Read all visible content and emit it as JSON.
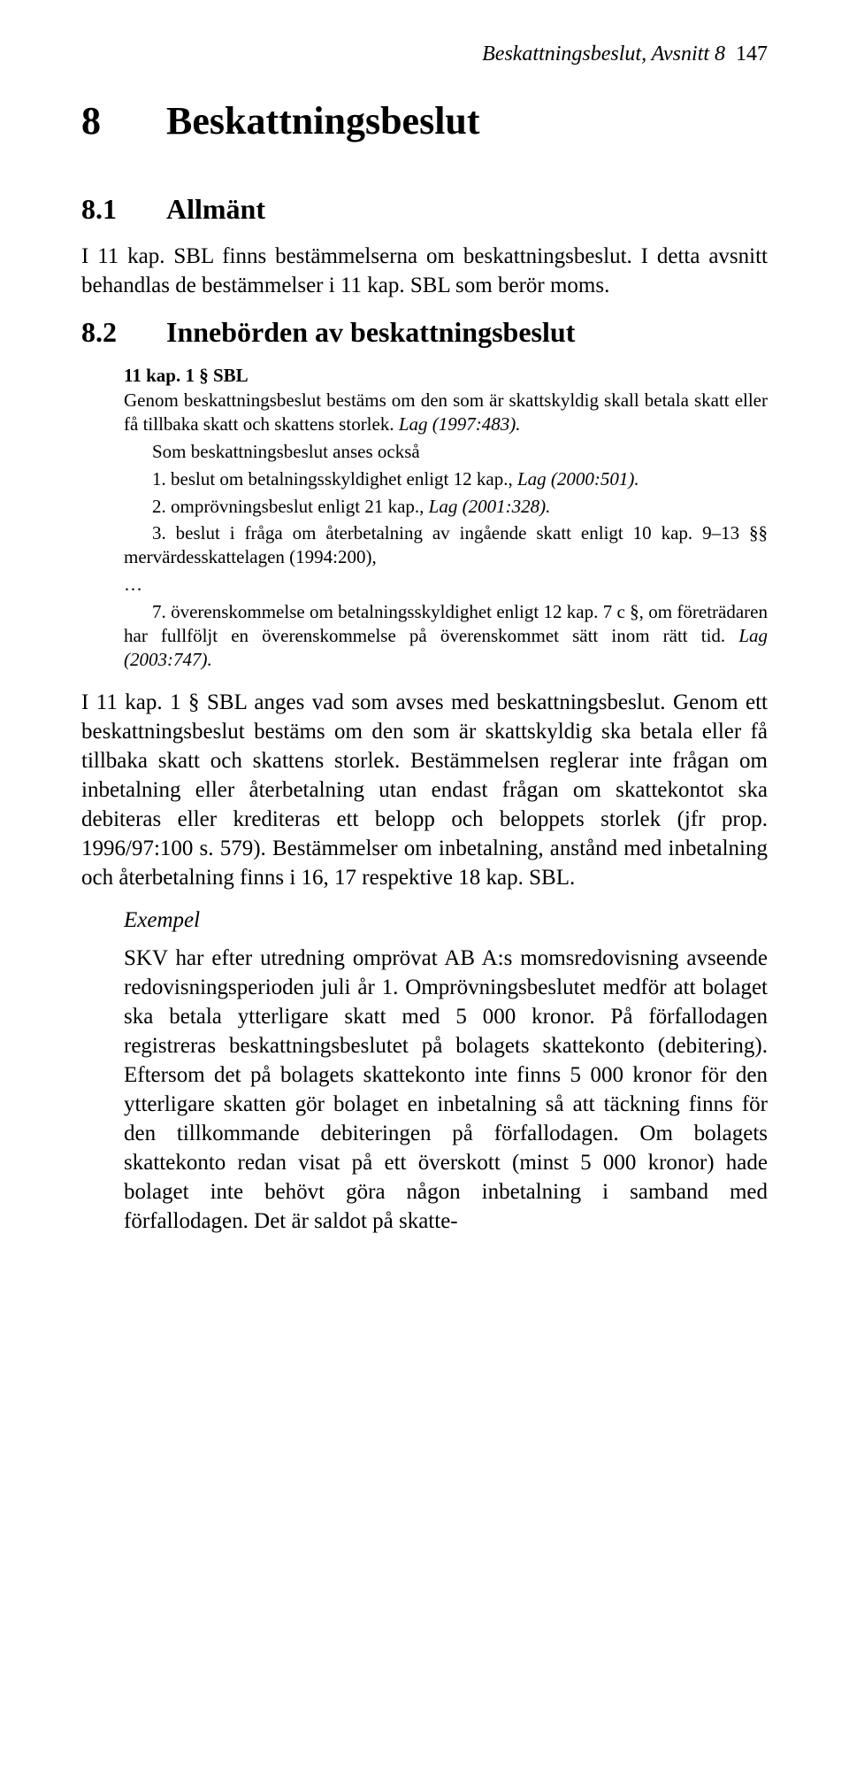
{
  "header": {
    "running_title": "Beskattningsbeslut, Avsnitt 8",
    "page_number": "147"
  },
  "chapter": {
    "number": "8",
    "title": "Beskattningsbeslut"
  },
  "section_81": {
    "number": "8.1",
    "title": "Allmänt",
    "body": "I 11 kap. SBL finns bestämmelserna om beskattningsbeslut. I detta avsnitt behandlas de bestämmelser i 11 kap. SBL som berör moms."
  },
  "section_82": {
    "number": "8.2",
    "title": "Innebörden av beskattningsbeslut",
    "quote": {
      "heading": "11 kap. 1 § SBL",
      "p1_a": "Genom beskattningsbeslut bestäms om den som är skattskyldig skall betala skatt eller få tillbaka skatt och skattens storlek. ",
      "p1_b_italic": "Lag (1997:483).",
      "p2": "Som beskattningsbeslut anses också",
      "li1_a": "1. beslut om betalningsskyldighet enligt 12 kap., ",
      "li1_b_italic": "Lag (2000:501).",
      "li2_a": "2. omprövningsbeslut enligt 21 kap., ",
      "li2_b_italic": "Lag (2001:328).",
      "li3": "3. beslut i fråga om återbetalning av ingående skatt enligt 10 kap. 9–13 §§ mervärdesskattelagen (1994:200),",
      "ellipsis": "…",
      "li7_a": "7. överenskommelse om betalningsskyldighet enligt 12 kap. 7 c §, om företrädaren har fullföljt en överenskommelse på överenskommet sätt inom rätt tid. ",
      "li7_b_italic": "Lag (2003:747)."
    },
    "body": "I 11 kap. 1 § SBL anges vad som avses med beskattningsbeslut. Genom ett beskattningsbeslut bestäms om den som är skattskyldig ska betala eller få tillbaka skatt och skattens storlek. Bestämmelsen reglerar inte frågan om inbetalning eller återbetalning utan endast frågan om skattekontot ska debiteras eller krediteras ett belopp och beloppets storlek (jfr prop. 1996/97:100 s. 579). Bestämmelser om inbetalning, anstånd med inbetalning och återbetalning finns i 16, 17 respektive 18 kap. SBL.",
    "example": {
      "heading": "Exempel",
      "body": "SKV har efter utredning omprövat AB A:s momsredovisning avseende redovisningsperioden juli år 1. Omprövningsbeslutet medför att bolaget ska betala ytterligare skatt med 5 000 kronor. På förfallodagen registreras beskattningsbeslutet på bolagets skattekonto (debitering). Eftersom det på bolagets skattekonto inte finns 5 000 kronor för den ytterligare skatten gör bolaget en inbetalning så att täckning finns för den tillkommande debiteringen på förfallodagen. Om bolagets skattekonto redan visat på ett överskott (minst 5 000 kronor) hade bolaget inte behövt göra någon inbetalning i samband med förfallodagen. Det är saldot på skatte-"
    }
  }
}
